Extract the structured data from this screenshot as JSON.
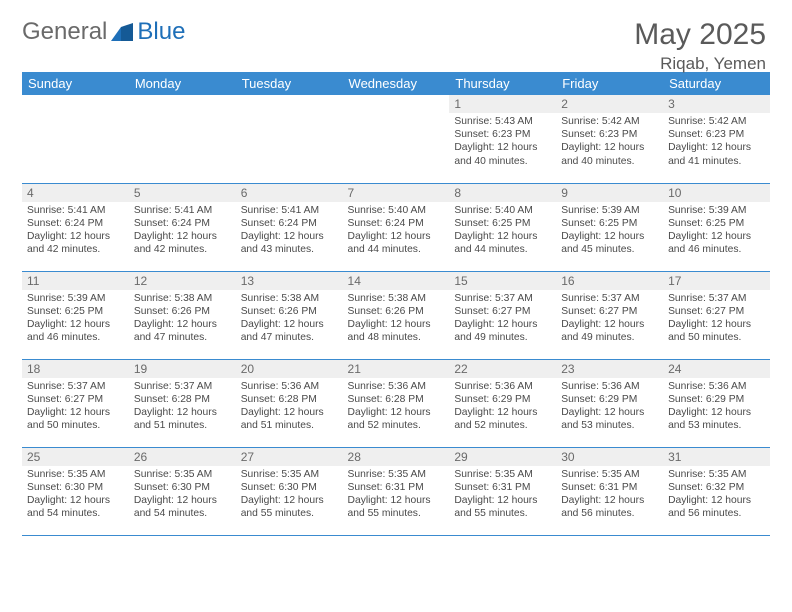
{
  "brand": {
    "part1": "General",
    "part2": "Blue"
  },
  "title": {
    "month": "May 2025",
    "location": "Riqab, Yemen"
  },
  "colors": {
    "header_bg": "#3a8bd0",
    "header_fg": "#ffffff",
    "daynum_bg": "#efefef",
    "border": "#3a8bd0",
    "brand_blue": "#1e6fb8",
    "text": "#4a4a4a"
  },
  "day_labels": [
    "Sunday",
    "Monday",
    "Tuesday",
    "Wednesday",
    "Thursday",
    "Friday",
    "Saturday"
  ],
  "weeks": [
    [
      null,
      null,
      null,
      null,
      {
        "n": "1",
        "sr": "5:43 AM",
        "ss": "6:23 PM",
        "dl": "12 hours and 40 minutes."
      },
      {
        "n": "2",
        "sr": "5:42 AM",
        "ss": "6:23 PM",
        "dl": "12 hours and 40 minutes."
      },
      {
        "n": "3",
        "sr": "5:42 AM",
        "ss": "6:23 PM",
        "dl": "12 hours and 41 minutes."
      }
    ],
    [
      {
        "n": "4",
        "sr": "5:41 AM",
        "ss": "6:24 PM",
        "dl": "12 hours and 42 minutes."
      },
      {
        "n": "5",
        "sr": "5:41 AM",
        "ss": "6:24 PM",
        "dl": "12 hours and 42 minutes."
      },
      {
        "n": "6",
        "sr": "5:41 AM",
        "ss": "6:24 PM",
        "dl": "12 hours and 43 minutes."
      },
      {
        "n": "7",
        "sr": "5:40 AM",
        "ss": "6:24 PM",
        "dl": "12 hours and 44 minutes."
      },
      {
        "n": "8",
        "sr": "5:40 AM",
        "ss": "6:25 PM",
        "dl": "12 hours and 44 minutes."
      },
      {
        "n": "9",
        "sr": "5:39 AM",
        "ss": "6:25 PM",
        "dl": "12 hours and 45 minutes."
      },
      {
        "n": "10",
        "sr": "5:39 AM",
        "ss": "6:25 PM",
        "dl": "12 hours and 46 minutes."
      }
    ],
    [
      {
        "n": "11",
        "sr": "5:39 AM",
        "ss": "6:25 PM",
        "dl": "12 hours and 46 minutes."
      },
      {
        "n": "12",
        "sr": "5:38 AM",
        "ss": "6:26 PM",
        "dl": "12 hours and 47 minutes."
      },
      {
        "n": "13",
        "sr": "5:38 AM",
        "ss": "6:26 PM",
        "dl": "12 hours and 47 minutes."
      },
      {
        "n": "14",
        "sr": "5:38 AM",
        "ss": "6:26 PM",
        "dl": "12 hours and 48 minutes."
      },
      {
        "n": "15",
        "sr": "5:37 AM",
        "ss": "6:27 PM",
        "dl": "12 hours and 49 minutes."
      },
      {
        "n": "16",
        "sr": "5:37 AM",
        "ss": "6:27 PM",
        "dl": "12 hours and 49 minutes."
      },
      {
        "n": "17",
        "sr": "5:37 AM",
        "ss": "6:27 PM",
        "dl": "12 hours and 50 minutes."
      }
    ],
    [
      {
        "n": "18",
        "sr": "5:37 AM",
        "ss": "6:27 PM",
        "dl": "12 hours and 50 minutes."
      },
      {
        "n": "19",
        "sr": "5:37 AM",
        "ss": "6:28 PM",
        "dl": "12 hours and 51 minutes."
      },
      {
        "n": "20",
        "sr": "5:36 AM",
        "ss": "6:28 PM",
        "dl": "12 hours and 51 minutes."
      },
      {
        "n": "21",
        "sr": "5:36 AM",
        "ss": "6:28 PM",
        "dl": "12 hours and 52 minutes."
      },
      {
        "n": "22",
        "sr": "5:36 AM",
        "ss": "6:29 PM",
        "dl": "12 hours and 52 minutes."
      },
      {
        "n": "23",
        "sr": "5:36 AM",
        "ss": "6:29 PM",
        "dl": "12 hours and 53 minutes."
      },
      {
        "n": "24",
        "sr": "5:36 AM",
        "ss": "6:29 PM",
        "dl": "12 hours and 53 minutes."
      }
    ],
    [
      {
        "n": "25",
        "sr": "5:35 AM",
        "ss": "6:30 PM",
        "dl": "12 hours and 54 minutes."
      },
      {
        "n": "26",
        "sr": "5:35 AM",
        "ss": "6:30 PM",
        "dl": "12 hours and 54 minutes."
      },
      {
        "n": "27",
        "sr": "5:35 AM",
        "ss": "6:30 PM",
        "dl": "12 hours and 55 minutes."
      },
      {
        "n": "28",
        "sr": "5:35 AM",
        "ss": "6:31 PM",
        "dl": "12 hours and 55 minutes."
      },
      {
        "n": "29",
        "sr": "5:35 AM",
        "ss": "6:31 PM",
        "dl": "12 hours and 55 minutes."
      },
      {
        "n": "30",
        "sr": "5:35 AM",
        "ss": "6:31 PM",
        "dl": "12 hours and 56 minutes."
      },
      {
        "n": "31",
        "sr": "5:35 AM",
        "ss": "6:32 PM",
        "dl": "12 hours and 56 minutes."
      }
    ]
  ],
  "labels": {
    "sunrise": "Sunrise: ",
    "sunset": "Sunset: ",
    "daylight": "Daylight: "
  }
}
